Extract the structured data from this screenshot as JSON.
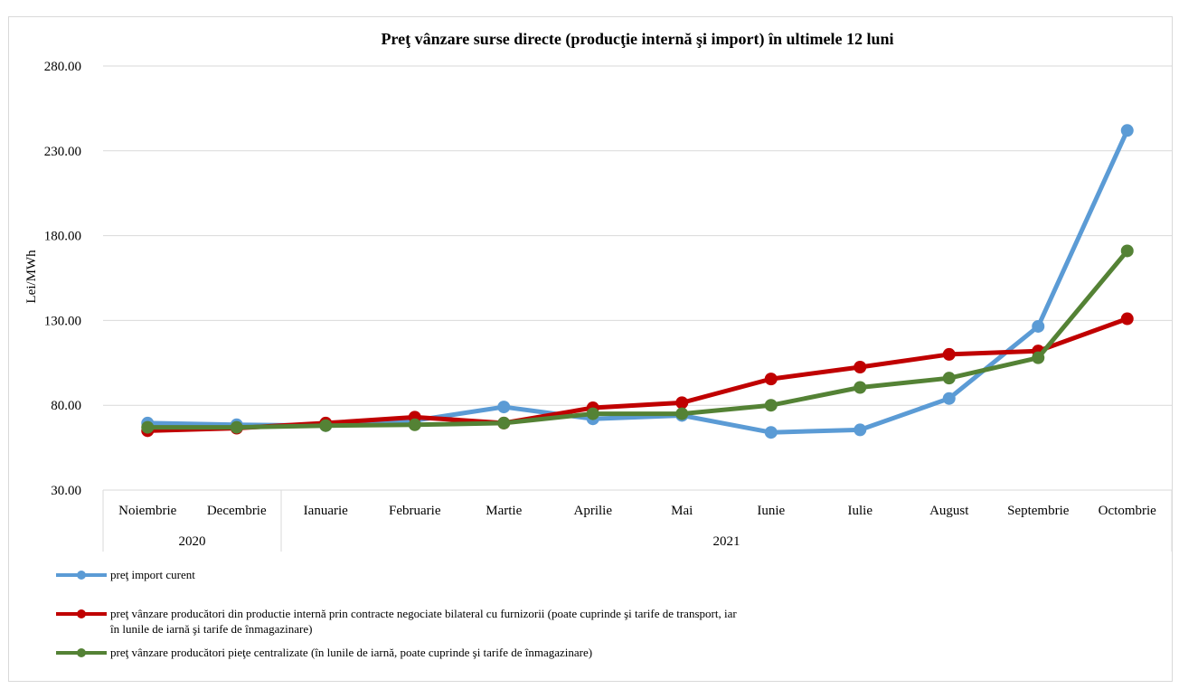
{
  "chart_data": {
    "type": "line",
    "title": "Preţ vânzare surse directe (producţie internă şi import) în ultimele 12 luni",
    "ylabel": "Lei/MWh",
    "ylim": [
      30,
      280
    ],
    "yticks": [
      "30.00",
      "80.00",
      "130.00",
      "180.00",
      "230.00",
      "280.00"
    ],
    "categories": [
      "Noiembrie",
      "Decembrie",
      "Ianuarie",
      "Februarie",
      "Martie",
      "Aprilie",
      "Mai",
      "Iunie",
      "Iulie",
      "August",
      "Septembrie",
      "Octombrie"
    ],
    "year_groups": [
      {
        "label": "2020",
        "span": 2
      },
      {
        "label": "2021",
        "span": 10
      }
    ],
    "grid": true,
    "legend_position": "bottom-left",
    "series": [
      {
        "name": "preţ import curent",
        "color": "#5b9bd5",
        "values": [
          69.5,
          68.5,
          68,
          71,
          79,
          72,
          74,
          64,
          65.5,
          84,
          126.5,
          242
        ]
      },
      {
        "name": "preţ vânzare producători din productie internă prin contracte negociate bilateral cu furnizorii (poate cuprinde şi tarife de transport, iar în lunile de iarnă şi tarife de înmagazinare)",
        "name_lines": [
          "preţ vânzare producători din productie internă prin contracte negociate bilateral cu furnizorii (poate cuprinde şi tarife de transport, iar",
          "în lunile de iarnă şi tarife de înmagazinare)"
        ],
        "color": "#c00000",
        "values": [
          65,
          66.5,
          69.5,
          73,
          69.5,
          78.5,
          81.5,
          95.5,
          102.5,
          110,
          112,
          131
        ]
      },
      {
        "name": "preţ vânzare producători pieţe centralizate (în lunile de iarnă, poate cuprinde şi tarife de înmagazinare)",
        "color": "#548235",
        "values": [
          67,
          67,
          68,
          68.5,
          69.5,
          75,
          75,
          80,
          90.5,
          96,
          108,
          171
        ]
      }
    ]
  }
}
